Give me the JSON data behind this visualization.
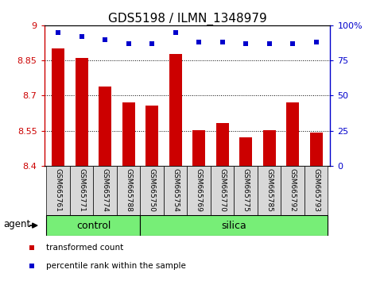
{
  "title": "GDS5198 / ILMN_1348979",
  "samples": [
    "GSM665761",
    "GSM665771",
    "GSM665774",
    "GSM665788",
    "GSM665750",
    "GSM665754",
    "GSM665769",
    "GSM665770",
    "GSM665775",
    "GSM665785",
    "GSM665792",
    "GSM665793"
  ],
  "red_values": [
    8.9,
    8.862,
    8.74,
    8.672,
    8.658,
    8.878,
    8.552,
    8.582,
    8.522,
    8.552,
    8.672,
    8.542
  ],
  "blue_values": [
    95,
    92,
    90,
    87,
    87,
    95,
    88,
    88,
    87,
    87,
    87,
    88
  ],
  "ymin": 8.4,
  "ymax": 9.0,
  "y2min": 0,
  "y2max": 100,
  "yticks": [
    8.4,
    8.55,
    8.7,
    8.85,
    9.0
  ],
  "ytick_labels": [
    "8.4",
    "8.55",
    "8.7",
    "8.85",
    "9"
  ],
  "y2ticks": [
    0,
    25,
    50,
    75,
    100
  ],
  "y2tick_labels": [
    "0",
    "25",
    "50",
    "75",
    "100%"
  ],
  "hlines": [
    8.55,
    8.7,
    8.85
  ],
  "bar_color": "#cc0000",
  "dot_color": "#0000cc",
  "control_count": 4,
  "silica_count": 8,
  "control_color": "#77ee77",
  "silica_color": "#77ee77",
  "agent_label": "agent",
  "control_label": "control",
  "silica_label": "silica",
  "legend_red": "transformed count",
  "legend_blue": "percentile rank within the sample",
  "plot_bg": "#ffffff",
  "title_fontsize": 11,
  "tick_fontsize": 8,
  "axis_label_color_red": "#cc0000",
  "axis_label_color_blue": "#0000cc"
}
